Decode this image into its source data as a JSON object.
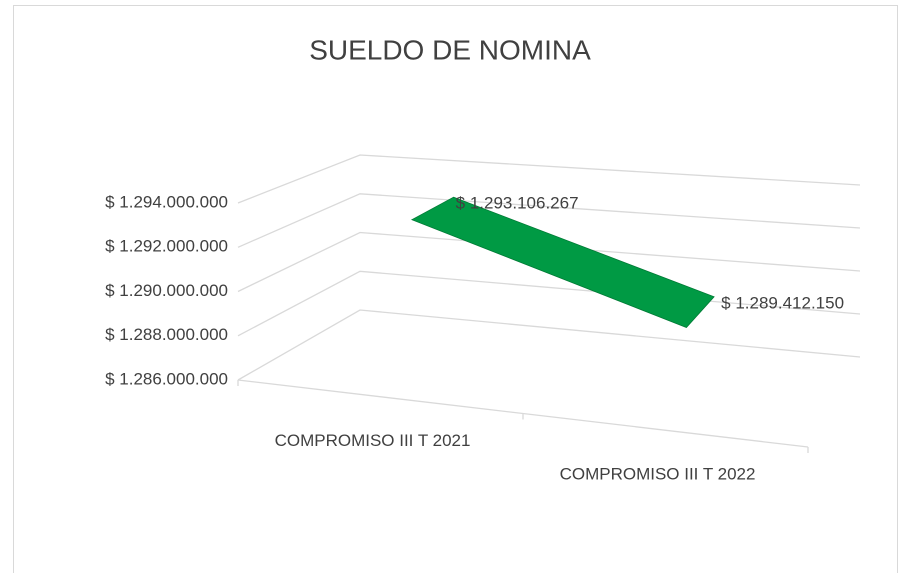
{
  "chart_data": {
    "type": "line3d",
    "title": "SUELDO DE NOMINA",
    "categories": [
      "COMPROMISO III T 2021",
      "COMPROMISO III T 2022"
    ],
    "series": [
      {
        "name": "SUELDO DE NOMINA",
        "color": "#009a44",
        "values": [
          1293106267,
          1289412150
        ],
        "value_labels": [
          "$ 1.293.106.267",
          "$ 1.289.412.150"
        ]
      }
    ],
    "ylim": [
      1286000000,
      1294000000
    ],
    "yticks": [
      {
        "value": 1286000000,
        "label": "$ 1.286.000.000"
      },
      {
        "value": 1288000000,
        "label": "$ 1.288.000.000"
      },
      {
        "value": 1290000000,
        "label": "$ 1.290.000.000"
      },
      {
        "value": 1292000000,
        "label": "$ 1.292.000.000"
      },
      {
        "value": 1294000000,
        "label": "$ 1.294.000.000"
      }
    ],
    "grid": true
  }
}
